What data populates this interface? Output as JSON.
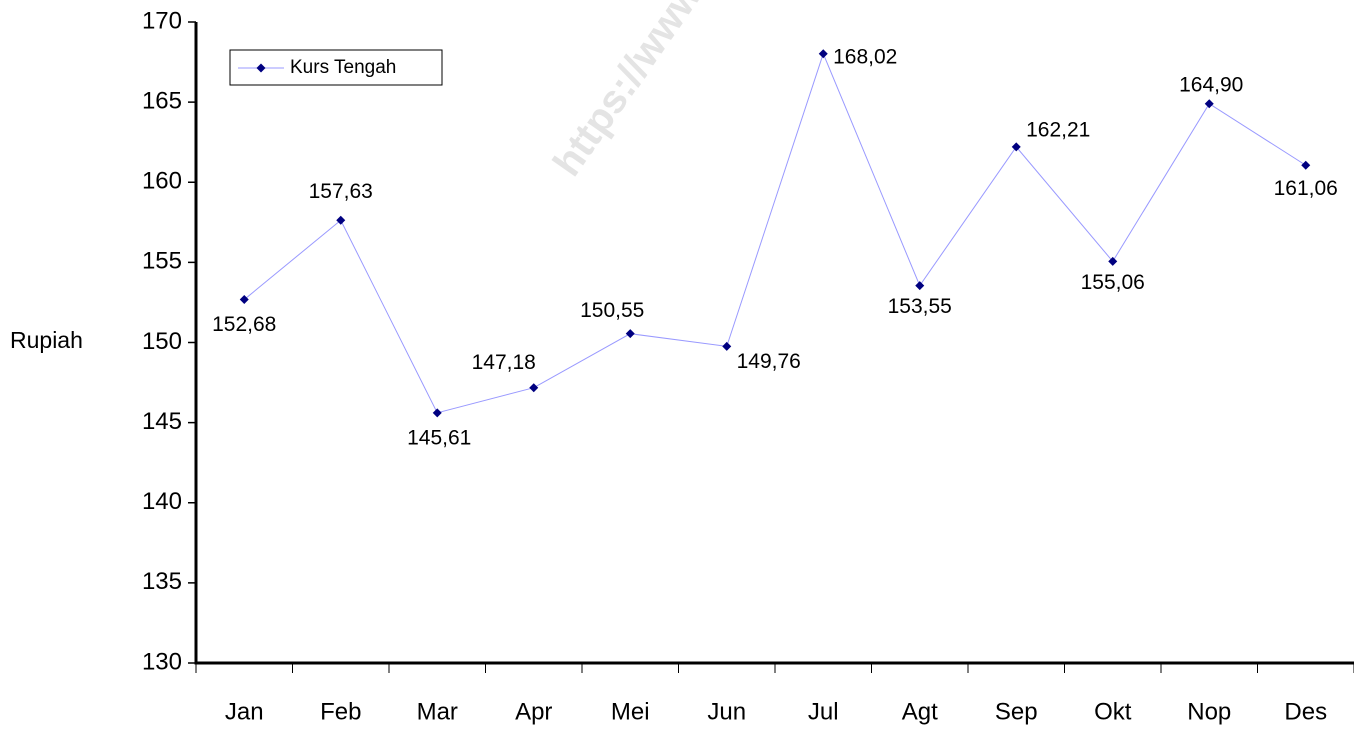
{
  "chart_data": {
    "type": "line",
    "watermark": "https://www",
    "ylabel": "Rupiah",
    "categories": [
      "Jan",
      "Feb",
      "Mar",
      "Apr",
      "Mei",
      "Jun",
      "Jul",
      "Agt",
      "Sep",
      "Okt",
      "Nop",
      "Des"
    ],
    "series": [
      {
        "name": "Kurs Tengah",
        "color": "#9999ff",
        "marker_color": "#000080",
        "values": [
          152.68,
          157.63,
          145.61,
          147.18,
          150.55,
          149.76,
          168.02,
          153.55,
          162.21,
          155.06,
          164.9,
          161.06
        ],
        "value_labels": [
          "152,68",
          "157,63",
          "145,61",
          "147,18",
          "150,55",
          "149,76",
          "168,02",
          "153,55",
          "162,21",
          "155,06",
          "164,90",
          "161,06"
        ]
      }
    ],
    "ylim": [
      130,
      170
    ],
    "yticks": [
      130,
      135,
      140,
      145,
      150,
      155,
      160,
      165,
      170
    ],
    "grid": false,
    "legend": "upper left"
  }
}
